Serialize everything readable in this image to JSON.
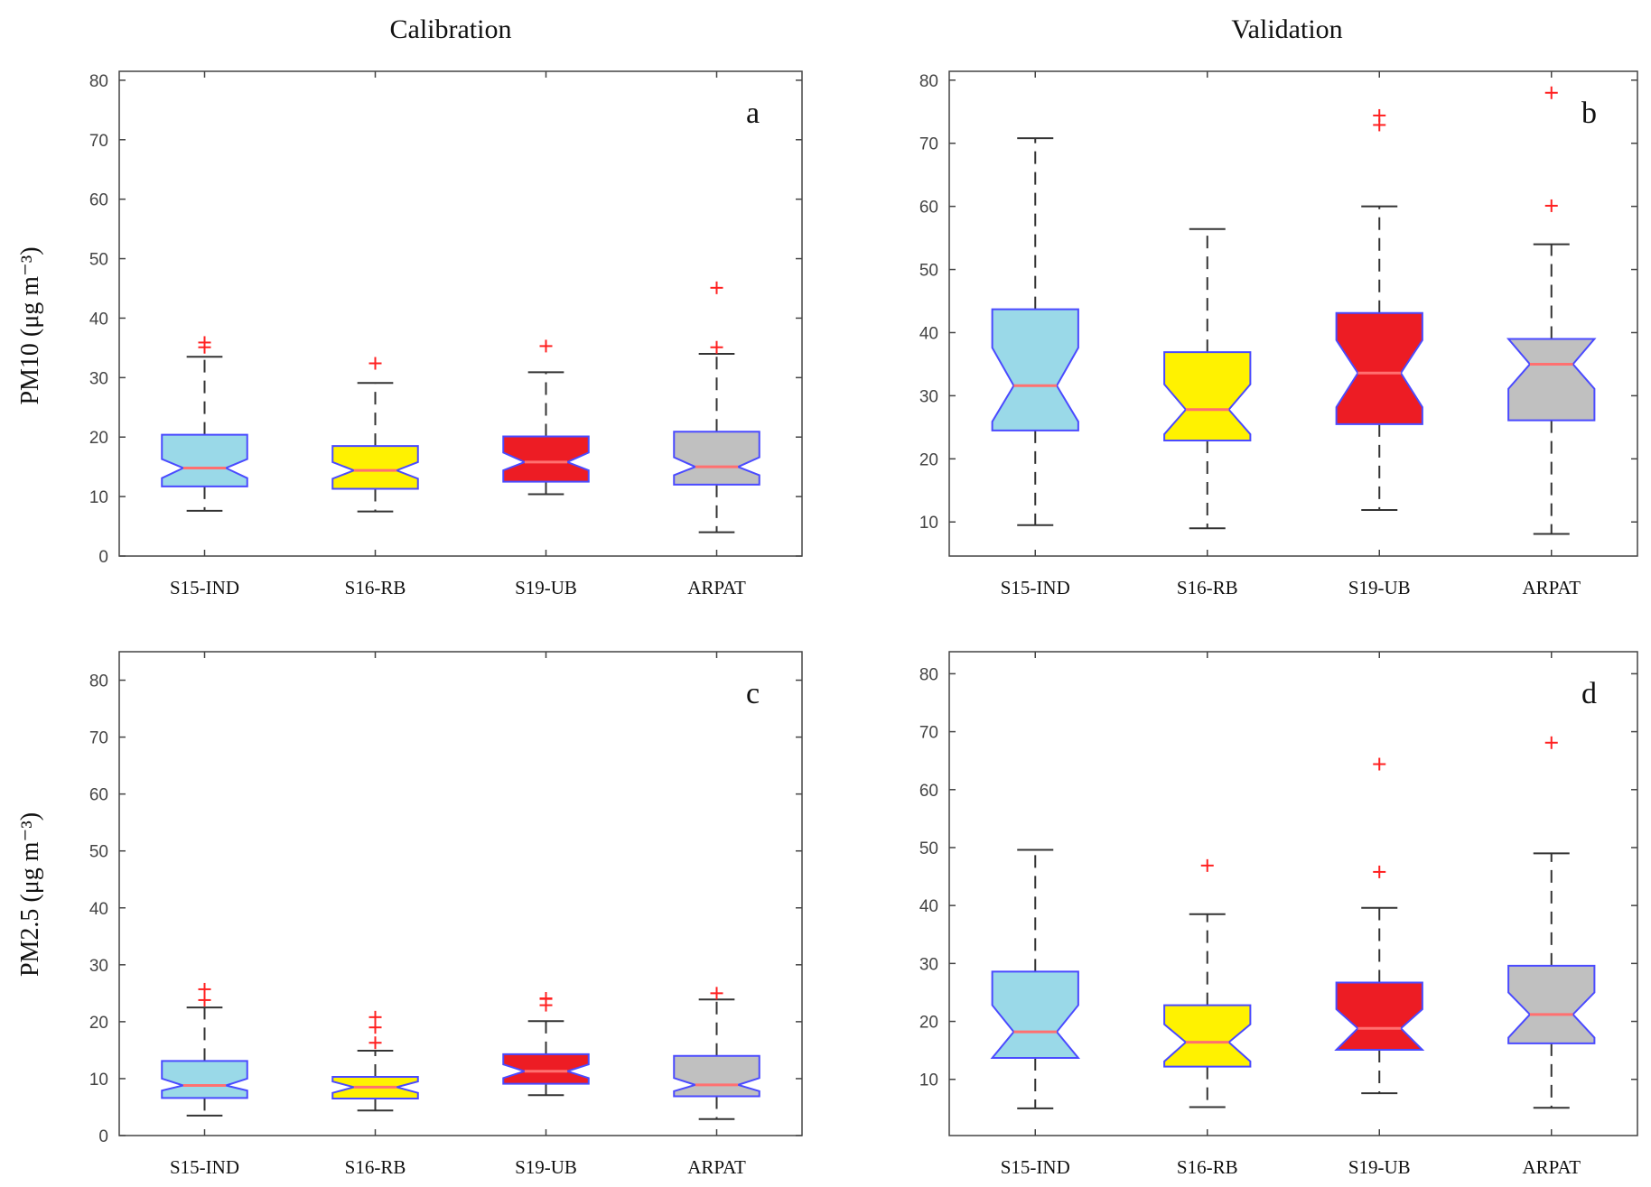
{
  "column_titles": {
    "left": "Calibration",
    "right": "Validation"
  },
  "row_labels": {
    "top": "PM10 (μg m⁻³)",
    "bottom": "PM2.5 (μg m⁻³)"
  },
  "colors": {
    "S15-IND": "#9ad9e8",
    "S16-RB": "#fff200",
    "S19-UB": "#ed1c24",
    "ARPAT": "#c0c0c0",
    "box_edge": "#4a4aff",
    "median": "#ff7070",
    "whisker": "#333333",
    "outlier": "#ff2020"
  },
  "chart_data": [
    {
      "type": "boxplot",
      "panel": "a",
      "title": "Calibration",
      "ylabel": "PM10 (μg m⁻³)",
      "ylim": [
        0,
        81.5
      ],
      "yticks": [
        0,
        10,
        20,
        30,
        40,
        50,
        60,
        70,
        80
      ],
      "categories": [
        "S15-IND",
        "S16-RB",
        "S19-UB",
        "ARPAT"
      ],
      "boxes": [
        {
          "low": 7.6,
          "q1": 11.7,
          "notch_low": 13.1,
          "median": 14.8,
          "notch_high": 16.3,
          "q3": 20.4,
          "high": 33.5,
          "outliers": [
            35.1,
            35.9
          ]
        },
        {
          "low": 7.5,
          "q1": 11.3,
          "notch_low": 13.0,
          "median": 14.4,
          "notch_high": 15.8,
          "q3": 18.5,
          "high": 29.1,
          "outliers": [
            32.4
          ]
        },
        {
          "low": 10.4,
          "q1": 12.5,
          "notch_low": 14.4,
          "median": 15.8,
          "notch_high": 17.4,
          "q3": 20.1,
          "high": 30.9,
          "outliers": [
            35.3
          ]
        },
        {
          "low": 4.0,
          "q1": 12.0,
          "notch_low": 13.6,
          "median": 15.0,
          "notch_high": 16.6,
          "q3": 20.9,
          "high": 34.0,
          "outliers": [
            35.1,
            45.1
          ]
        }
      ]
    },
    {
      "type": "boxplot",
      "panel": "b",
      "title": "Validation",
      "ylabel": "",
      "ylim": [
        4.6,
        81.4
      ],
      "yticks": [
        10,
        20,
        30,
        40,
        50,
        60,
        70,
        80
      ],
      "categories": [
        "S15-IND",
        "S16-RB",
        "S19-UB",
        "ARPAT"
      ],
      "boxes": [
        {
          "low": 9.5,
          "q1": 24.5,
          "notch_low": 25.9,
          "median": 31.6,
          "notch_high": 37.6,
          "q3": 43.7,
          "high": 70.8,
          "outliers": []
        },
        {
          "low": 9.0,
          "q1": 22.9,
          "notch_low": 23.9,
          "median": 27.8,
          "notch_high": 31.8,
          "q3": 36.9,
          "high": 56.4,
          "outliers": []
        },
        {
          "low": 11.9,
          "q1": 25.5,
          "notch_low": 28.2,
          "median": 33.6,
          "notch_high": 38.8,
          "q3": 43.1,
          "high": 60.0,
          "outliers": [
            72.9,
            74.4
          ]
        },
        {
          "low": 8.1,
          "q1": 26.1,
          "notch_low": 31.1,
          "median": 35.0,
          "notch_high": 39.0,
          "q3": 39.0,
          "high": 54.0,
          "outliers": [
            60.1,
            78.0
          ]
        }
      ]
    },
    {
      "type": "boxplot",
      "panel": "c",
      "title": "",
      "ylabel": "PM2.5 (μg m⁻³)",
      "ylim": [
        0,
        85
      ],
      "yticks": [
        0,
        10,
        20,
        30,
        40,
        50,
        60,
        70,
        80
      ],
      "categories": [
        "S15-IND",
        "S16-RB",
        "S19-UB",
        "ARPAT"
      ],
      "boxes": [
        {
          "low": 3.5,
          "q1": 6.6,
          "notch_low": 7.9,
          "median": 8.8,
          "notch_high": 10.0,
          "q3": 13.1,
          "high": 22.5,
          "outliers": [
            23.8,
            25.7
          ]
        },
        {
          "low": 4.4,
          "q1": 6.5,
          "notch_low": 7.5,
          "median": 8.5,
          "notch_high": 9.5,
          "q3": 10.3,
          "high": 14.9,
          "outliers": [
            16.3,
            19.0,
            20.8
          ]
        },
        {
          "low": 7.1,
          "q1": 9.1,
          "notch_low": 10.1,
          "median": 11.3,
          "notch_high": 12.5,
          "q3": 14.3,
          "high": 20.1,
          "outliers": [
            22.9,
            24.0,
            24.1
          ]
        },
        {
          "low": 2.9,
          "q1": 6.9,
          "notch_low": 7.8,
          "median": 8.9,
          "notch_high": 10.1,
          "q3": 14.0,
          "high": 23.9,
          "outliers": [
            25.0
          ]
        }
      ]
    },
    {
      "type": "boxplot",
      "panel": "d",
      "title": "",
      "ylabel": "",
      "ylim": [
        0.3,
        83.8
      ],
      "yticks": [
        10,
        20,
        30,
        40,
        50,
        60,
        70,
        80
      ],
      "categories": [
        "S15-IND",
        "S16-RB",
        "S19-UB",
        "ARPAT"
      ],
      "boxes": [
        {
          "low": 5.0,
          "q1": 13.7,
          "notch_low": 13.7,
          "median": 18.2,
          "notch_high": 22.8,
          "q3": 28.6,
          "high": 49.6,
          "outliers": []
        },
        {
          "low": 5.2,
          "q1": 12.2,
          "notch_low": 13.1,
          "median": 16.4,
          "notch_high": 19.5,
          "q3": 22.8,
          "high": 38.5,
          "outliers": [
            46.9
          ]
        },
        {
          "low": 7.6,
          "q1": 15.1,
          "notch_low": 15.1,
          "median": 18.8,
          "notch_high": 22.1,
          "q3": 26.7,
          "high": 39.6,
          "outliers": [
            45.8,
            64.4
          ]
        },
        {
          "low": 5.1,
          "q1": 16.2,
          "notch_low": 17.2,
          "median": 21.2,
          "notch_high": 25.0,
          "q3": 29.6,
          "high": 49.0,
          "outliers": [
            68.1
          ]
        }
      ]
    }
  ]
}
